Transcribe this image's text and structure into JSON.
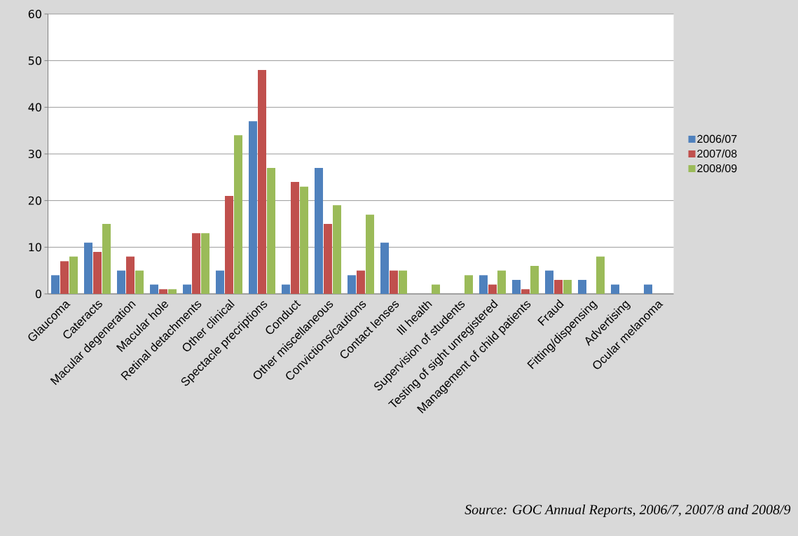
{
  "chart_data": {
    "type": "bar",
    "categories": [
      "Glaucoma",
      "Cateracts",
      "Macular degeneration",
      "Macular hole",
      "Retinal detachments",
      "Other clinical",
      "Spectacle precriptions",
      "Conduct",
      "Other miscellaneous",
      "Convictions/cautions",
      "Contact lenses",
      "Ill health",
      "Supervision of students",
      "Testing of sight unregistered",
      "Management of child patients",
      "Fraud",
      "Fitting/dispensing",
      "Advertising",
      "Ocular melanoma"
    ],
    "series": [
      {
        "name": "2006/07",
        "color": "#4f81bd",
        "values": [
          4,
          11,
          5,
          2,
          2,
          5,
          37,
          2,
          27,
          4,
          11,
          null,
          null,
          4,
          3,
          5,
          3,
          2,
          2
        ]
      },
      {
        "name": "2007/08",
        "color": "#c0504d",
        "values": [
          7,
          9,
          8,
          1,
          13,
          21,
          48,
          24,
          15,
          5,
          5,
          null,
          null,
          2,
          1,
          3,
          null,
          null,
          null
        ]
      },
      {
        "name": "2008/09",
        "color": "#9bbb59",
        "values": [
          8,
          15,
          5,
          1,
          13,
          34,
          27,
          23,
          19,
          17,
          5,
          2,
          4,
          5,
          6,
          3,
          8,
          null,
          null
        ]
      }
    ],
    "ylim": [
      0,
      60
    ],
    "yticks": [
      0,
      10,
      20,
      30,
      40,
      50,
      60
    ],
    "grid": "y",
    "legend": "right",
    "annotations": [
      "Source: GOC Annual Reports, 2006/7, 2007/8 and 2008/9"
    ]
  }
}
